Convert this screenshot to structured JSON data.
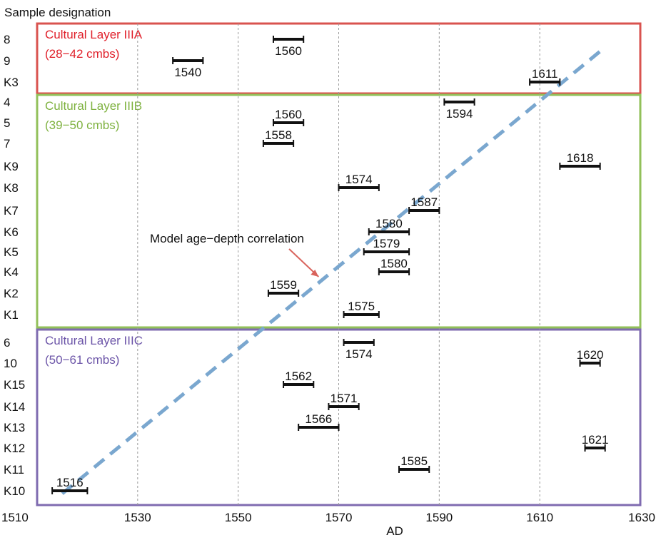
{
  "chart_data": {
    "type": "interval-dot-plot",
    "ylabel": "Sample designation",
    "xlabel": "AD",
    "xlim": [
      1510,
      1630
    ],
    "x_ticks": [
      1510,
      1530,
      1550,
      1570,
      1590,
      1610,
      1630
    ],
    "grid": "vertical dashed",
    "rows": [
      "8",
      "9",
      "K3",
      "4",
      "5",
      "7",
      "K9",
      "K8",
      "K7",
      "K6",
      "K5",
      "K4",
      "K2",
      "K1",
      "6",
      "10",
      "K15",
      "K14",
      "K13",
      "K12",
      "K11",
      "K10"
    ],
    "layers": [
      {
        "name": "Cultural Layer IIIA",
        "depth": "(28−42 cmbs)",
        "color": "#d9534f",
        "text_color": "#e0202a",
        "first_row": 0,
        "last_row": 2
      },
      {
        "name": "Cultural Layer IIIB",
        "depth": "(39−50 cmbs)",
        "color": "#92c05a",
        "text_color": "#7fb240",
        "first_row": 3,
        "last_row": 13
      },
      {
        "name": "Cultural Layer IIIC",
        "depth": "(50−61 cmbs)",
        "color": "#7f6bb0",
        "text_color": "#6c55a8",
        "first_row": 14,
        "last_row": 21
      }
    ],
    "samples": [
      {
        "id": "8",
        "label": "1560",
        "low": 1557,
        "high": 1563,
        "label_pos": "below"
      },
      {
        "id": "9",
        "label": "1540",
        "low": 1537,
        "high": 1543,
        "label_pos": "below"
      },
      {
        "id": "K3",
        "label": "1611",
        "low": 1608,
        "high": 1614,
        "label_pos": "above"
      },
      {
        "id": "4",
        "label": "1594",
        "low": 1591,
        "high": 1597,
        "label_pos": "below"
      },
      {
        "id": "5",
        "label": "1560",
        "low": 1557,
        "high": 1563,
        "label_pos": "above"
      },
      {
        "id": "7",
        "label": "1558",
        "low": 1555,
        "high": 1561,
        "label_pos": "above"
      },
      {
        "id": "K9",
        "label": "1618",
        "low": 1614,
        "high": 1622,
        "label_pos": "above"
      },
      {
        "id": "K8",
        "label": "1574",
        "low": 1570,
        "high": 1578,
        "label_pos": "above"
      },
      {
        "id": "K7",
        "label": "1587",
        "low": 1584,
        "high": 1590,
        "label_pos": "above"
      },
      {
        "id": "K6",
        "label": "1580",
        "low": 1576,
        "high": 1584,
        "label_pos": "above"
      },
      {
        "id": "K5",
        "label": "1579",
        "low": 1575,
        "high": 1584,
        "label_pos": "above"
      },
      {
        "id": "K4",
        "label": "1580",
        "low": 1578,
        "high": 1584,
        "label_pos": "above"
      },
      {
        "id": "K2",
        "label": "1559",
        "low": 1556,
        "high": 1562,
        "label_pos": "above"
      },
      {
        "id": "K1",
        "label": "1575",
        "low": 1571,
        "high": 1578,
        "label_pos": "above"
      },
      {
        "id": "6",
        "label": "1574",
        "low": 1571,
        "high": 1577,
        "label_pos": "below"
      },
      {
        "id": "10",
        "label": "1620",
        "low": 1618,
        "high": 1622,
        "label_pos": "above"
      },
      {
        "id": "K15",
        "label": "1562",
        "low": 1559,
        "high": 1565,
        "label_pos": "above"
      },
      {
        "id": "K14",
        "label": "1571",
        "low": 1568,
        "high": 1574,
        "label_pos": "above"
      },
      {
        "id": "K13",
        "label": "1566",
        "low": 1562,
        "high": 1570,
        "label_pos": "above"
      },
      {
        "id": "K12",
        "label": "1621",
        "low": 1619,
        "high": 1623,
        "label_pos": "above"
      },
      {
        "id": "K11",
        "label": "1585",
        "low": 1582,
        "high": 1588,
        "label_pos": "above"
      },
      {
        "id": "K10",
        "label": "1516",
        "low": 1513,
        "high": 1520,
        "label_pos": "above"
      }
    ],
    "trend_line": {
      "label": "Model age−depth correlation",
      "style": "dashed",
      "color": "#7aa7cf",
      "from": {
        "x": 1515,
        "row": "K10"
      },
      "to": {
        "x": 1622,
        "row": "9"
      },
      "arrow_to": {
        "x": 1566,
        "row": "K4"
      }
    }
  }
}
